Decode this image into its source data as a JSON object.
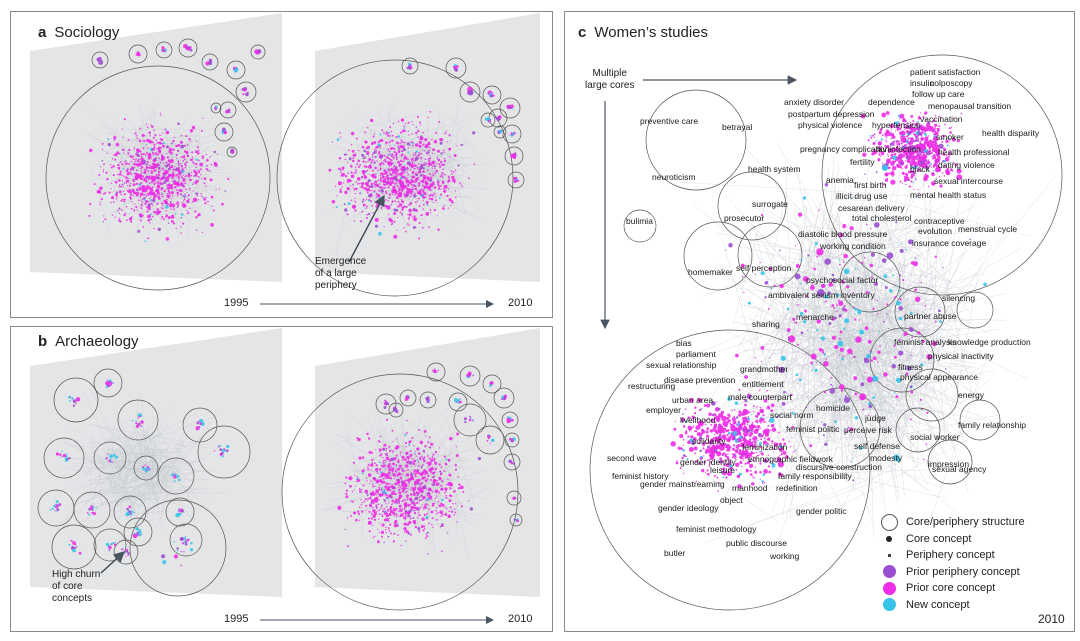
{
  "panels": {
    "a": {
      "letter": "a",
      "title": "Sociology",
      "year_start": "1995",
      "year_end": "2010",
      "annotation": [
        "Emergence",
        "of a large",
        "periphery"
      ]
    },
    "b": {
      "letter": "b",
      "title": "Archaeology",
      "year_start": "1995",
      "year_end": "2010",
      "annotation": [
        "High churn",
        "of core",
        "concepts"
      ]
    },
    "c": {
      "letter": "c",
      "title": "Women’s studies",
      "year": "2010",
      "annotation": [
        "Multiple",
        "large cores"
      ]
    }
  },
  "terms": [
    "patient satisfaction",
    "insulin",
    "colposcopy",
    "follow up care",
    "anxiety disorder",
    "dependence",
    "menopausal transition",
    "postpartum depression",
    "vaccination",
    "physical violence",
    "hypertension",
    "smoker",
    "health disparity",
    "pregnancy complication",
    "hiv infection",
    "preventive care",
    "betrayal",
    "fertility",
    "health professional",
    "dating violence",
    "health system",
    "anemia",
    "black",
    "sexual intercourse",
    "neuroticism",
    "first birth",
    "mental health status",
    "illicit drug use",
    "cesarean delivery",
    "surrogate",
    "total cholesterol",
    "contraceptive",
    "menstrual cycle",
    "bulimia",
    "prosecutor",
    "evolution",
    "diastolic blood pressure",
    "insurance coverage",
    "working condition",
    "homemaker",
    "self perception",
    "psychosocial factor",
    "ambivalent sexism inventory",
    "silencing",
    "partner abuse",
    "sharing",
    "menarche",
    "knowledge production",
    "bias",
    "parliament",
    "feminist analysis",
    "physical inactivity",
    "sexual relationship",
    "grandmother",
    "fitness",
    "disease prevention",
    "physical appearance",
    "restructuring",
    "entitlement",
    "homicide",
    "urban area",
    "male counterpart",
    "employer",
    "livelihood",
    "social norm",
    "judge",
    "perceive risk",
    "energy",
    "feminist politic",
    "social worker",
    "solidarity",
    "feminization",
    "self defense",
    "family relationship",
    "modesty",
    "ethnographic fieldwork",
    "impression",
    "second wave",
    "gender identity",
    "leisure",
    "discursive construction",
    "sexual agency",
    "feminist history",
    "family responsibility",
    "gender mainstreaming",
    "manhood",
    "redefinition",
    "object",
    "gender ideology",
    "gender politic",
    "feminist methodology",
    "butler",
    "public discourse",
    "working"
  ],
  "legend": [
    {
      "label": "Core/periphery structure",
      "symbol": "ring"
    },
    {
      "label": "Core concept",
      "symbol": "core-dot"
    },
    {
      "label": "Periphery concept",
      "symbol": "periphery-dot"
    },
    {
      "label": "Prior periphery concept",
      "symbol": "circle",
      "color": "#9b4fd0"
    },
    {
      "label": "Prior core concept",
      "symbol": "circle",
      "color": "#ee2ee6"
    },
    {
      "label": "New concept",
      "symbol": "circle",
      "color": "#38c4ea"
    }
  ],
  "colors": {
    "prior_periphery": "#9b4fd0",
    "prior_core": "#ee2ee6",
    "new": "#38c4ea",
    "edge": "#c5cad1",
    "plane": "#e4e5e6"
  }
}
